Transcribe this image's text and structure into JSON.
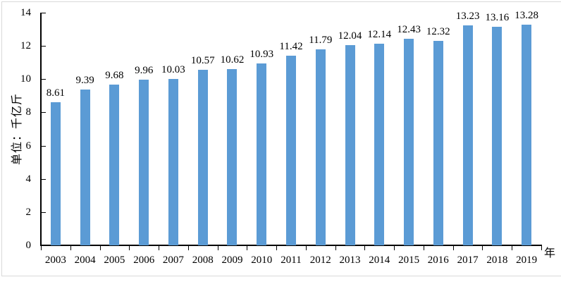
{
  "chart_data": {
    "type": "bar",
    "title": "",
    "categories": [
      "2003",
      "2004",
      "2005",
      "2006",
      "2007",
      "2008",
      "2009",
      "2010",
      "2011",
      "2012",
      "2013",
      "2014",
      "2015",
      "2016",
      "2017",
      "2018",
      "2019"
    ],
    "values": [
      8.61,
      9.39,
      9.68,
      9.96,
      10.03,
      10.57,
      10.62,
      10.93,
      11.42,
      11.79,
      12.04,
      12.14,
      12.43,
      12.32,
      13.23,
      13.16,
      13.28
    ],
    "ylabel": "单位：千亿斤",
    "xlabel": "年",
    "ylim": [
      0,
      14
    ],
    "ytick_step": 2,
    "grid": false,
    "legend": false,
    "data_labels": true,
    "colors": {
      "bar": "#5B9BD5",
      "axis": "#000000",
      "text": "#000000",
      "frame_border": "#D9D9D9"
    }
  }
}
